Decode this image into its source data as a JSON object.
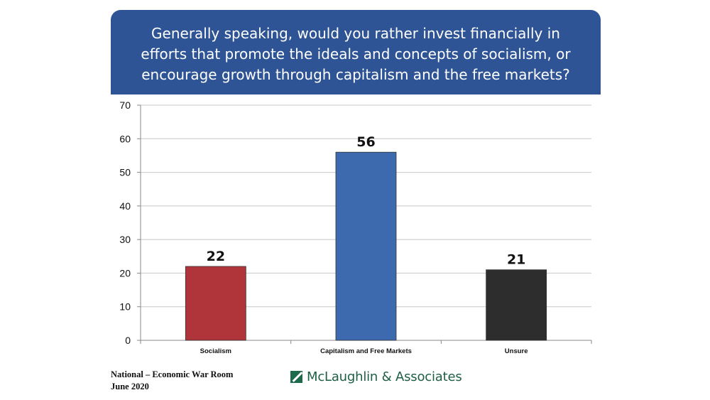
{
  "question": "Generally speaking, would you rather invest financially in efforts that promote the ideals and concepts of socialism, or encourage growth through capitalism and the free markets?",
  "footer": {
    "line1": "National – Economic War Room",
    "line2": "June 2020",
    "brand": "McLaughlin & Associates"
  },
  "colors": {
    "banner": "#2e5496",
    "brand": "#1d6b4b"
  },
  "chart_data": {
    "type": "bar",
    "categories": [
      "Socialism",
      "Capitalism and Free Markets",
      "Unsure"
    ],
    "values": [
      22,
      56,
      21
    ],
    "colors": [
      "#b0353a",
      "#3d6aaf",
      "#2d2d2d"
    ],
    "ylim": [
      0,
      70
    ],
    "yticks": [
      0,
      10,
      20,
      30,
      40,
      50,
      60,
      70
    ],
    "grid": true,
    "legend": "none"
  }
}
